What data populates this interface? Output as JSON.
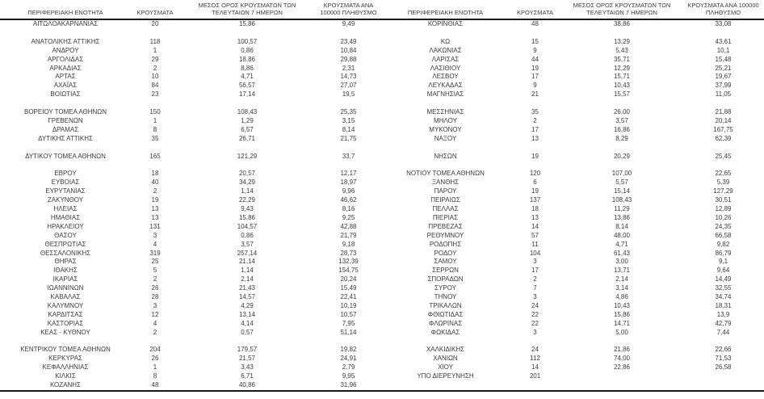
{
  "table": {
    "headers": [
      "ΠΕΡΙΦΕΡΕΙΑΚΗ ΕΝΟΤΗΤΑ",
      "ΚΡΟΥΣΜΑΤΑ",
      "ΜΕΣΟΣ ΟΡΟΣ ΚΡΟΥΣΜΑΤΩΝ ΤΩΝ ΤΕΛΕΥΤΑΙΩΝ 7 ΗΜΕΡΩΝ",
      "ΚΡΟΥΣΜΑΤΑ ΑΝΑ 100000 ΠΛΗΘΥΣΜΟ"
    ],
    "left_rows": [
      {
        "name": "ΑΙΤΩΛΟΑΚΑΡΝΑΝΙΑΣ",
        "cases": "20",
        "avg7": "15,86",
        "per100k": "9,49"
      },
      null,
      {
        "name": "ΑΝΑΤΟΛΙΚΗΣ ΑΤΤΙΚΗΣ",
        "cases": "118",
        "avg7": "100,57",
        "per100k": "23,49"
      },
      {
        "name": "ΑΝΔΡΟΥ",
        "cases": "1",
        "avg7": "0,86",
        "per100k": "10,84"
      },
      {
        "name": "ΑΡΓΟΛΙΔΑΣ",
        "cases": "29",
        "avg7": "18,86",
        "per100k": "29,88"
      },
      {
        "name": "ΑΡΚΑΔΙΑΣ",
        "cases": "2",
        "avg7": "8,86",
        "per100k": "2,31"
      },
      {
        "name": "ΑΡΤΑΣ",
        "cases": "10",
        "avg7": "4,71",
        "per100k": "14,73"
      },
      {
        "name": "ΑΧΑΪΑΣ",
        "cases": "84",
        "avg7": "56,57",
        "per100k": "27,07"
      },
      {
        "name": "ΒΟΙΩΤΙΑΣ",
        "cases": "23",
        "avg7": "17,14",
        "per100k": "19,5"
      },
      null,
      {
        "name": "ΒΟΡΕΙΟΥ ΤΟΜΕΑ ΑΘΗΝΩΝ",
        "cases": "150",
        "avg7": "108,43",
        "per100k": "25,35"
      },
      {
        "name": "ΓΡΕΒΕΝΩΝ",
        "cases": "1",
        "avg7": "1,29",
        "per100k": "3,15"
      },
      {
        "name": "ΔΡΑΜΑΣ",
        "cases": "8",
        "avg7": "6,57",
        "per100k": "8,14"
      },
      {
        "name": "ΔΥΤΙΚΗΣ ΑΤΤΙΚΗΣ",
        "cases": "35",
        "avg7": "26,71",
        "per100k": "21,75"
      },
      null,
      {
        "name": "ΔΥΤΙΚΟΥ ΤΟΜΕΑ ΑΘΗΝΩΝ",
        "cases": "165",
        "avg7": "121,29",
        "per100k": "33,7"
      },
      null,
      {
        "name": "ΕΒΡΟΥ",
        "cases": "18",
        "avg7": "20,57",
        "per100k": "12,17"
      },
      {
        "name": "ΕΥΒΟΙΑΣ",
        "cases": "40",
        "avg7": "34,29",
        "per100k": "18,97"
      },
      {
        "name": "ΕΥΡΥΤΑΝΙΑΣ",
        "cases": "2",
        "avg7": "1,14",
        "per100k": "9,96"
      },
      {
        "name": "ΖΑΚΥΝΘΟΥ",
        "cases": "19",
        "avg7": "22,29",
        "per100k": "46,62"
      },
      {
        "name": "ΗΛΕΙΑΣ",
        "cases": "13",
        "avg7": "9,43",
        "per100k": "8,16"
      },
      {
        "name": "ΗΜΑΘΙΑΣ",
        "cases": "13",
        "avg7": "15,86",
        "per100k": "9,25"
      },
      {
        "name": "ΗΡΑΚΛΕΙΟΥ",
        "cases": "131",
        "avg7": "104,57",
        "per100k": "42,88"
      },
      {
        "name": "ΘΑΣΟΥ",
        "cases": "3",
        "avg7": "0,86",
        "per100k": "21,79"
      },
      {
        "name": "ΘΕΣΠΡΩΤΙΑΣ",
        "cases": "4",
        "avg7": "3,57",
        "per100k": "9,18"
      },
      {
        "name": "ΘΕΣΣΑΛΟΝΙΚΗΣ",
        "cases": "319",
        "avg7": "257,14",
        "per100k": "28,73"
      },
      {
        "name": "ΘΗΡΑΣ",
        "cases": "25",
        "avg7": "21,14",
        "per100k": "132,39"
      },
      {
        "name": "ΙΘΑΚΗΣ",
        "cases": "5",
        "avg7": "1,14",
        "per100k": "154,75"
      },
      {
        "name": "ΙΚΑΡΙΑΣ",
        "cases": "2",
        "avg7": "2,14",
        "per100k": "20,24"
      },
      {
        "name": "ΙΩΑΝΝΙΝΩΝ",
        "cases": "26",
        "avg7": "21,43",
        "per100k": "15,49"
      },
      {
        "name": "ΚΑΒΑΛΑΣ",
        "cases": "28",
        "avg7": "14,57",
        "per100k": "22,41"
      },
      {
        "name": "ΚΑΛΥΜΝΟΥ",
        "cases": "3",
        "avg7": "4,29",
        "per100k": "10,19"
      },
      {
        "name": "ΚΑΡΔΙΤΣΑΣ",
        "cases": "12",
        "avg7": "13,14",
        "per100k": "10,57"
      },
      {
        "name": "ΚΑΣΤΟΡΙΑΣ",
        "cases": "4",
        "avg7": "4,14",
        "per100k": "7,95"
      },
      {
        "name": "ΚΕΑΣ - ΚΥΘΝΟΥ",
        "cases": "2",
        "avg7": "0,57",
        "per100k": "51,14"
      },
      null,
      {
        "name": "ΚΕΝΤΡΙΚΟΥ ΤΟΜΕΑ ΑΘΗΝΩΝ",
        "cases": "204",
        "avg7": "179,57",
        "per100k": "19,82"
      },
      {
        "name": "ΚΕΡΚΥΡΑΣ",
        "cases": "26",
        "avg7": "21,57",
        "per100k": "24,91"
      },
      {
        "name": "ΚΕΦΑΛΛΗΝΙΑΣ",
        "cases": "1",
        "avg7": "3,43",
        "per100k": "2,79"
      },
      {
        "name": "ΚΙΛΚΙΣ",
        "cases": "8",
        "avg7": "6,71",
        "per100k": "9,95"
      },
      {
        "name": "ΚΟΖΑΝΗΣ",
        "cases": "48",
        "avg7": "40,86",
        "per100k": "31,96"
      }
    ],
    "right_rows": [
      {
        "name": "ΚΟΡΙΝΘΙΑΣ",
        "cases": "48",
        "avg7": "38,86",
        "per100k": "33,08"
      },
      null,
      {
        "name": "ΚΩ",
        "cases": "15",
        "avg7": "13,29",
        "per100k": "43,61"
      },
      {
        "name": "ΛΑΚΩΝΙΑΣ",
        "cases": "9",
        "avg7": "5,43",
        "per100k": "10,1"
      },
      {
        "name": "ΛΑΡΙΣΑΣ",
        "cases": "44",
        "avg7": "35,71",
        "per100k": "15,48"
      },
      {
        "name": "ΛΑΣΙΘΙΟΥ",
        "cases": "19",
        "avg7": "12,29",
        "per100k": "25,21"
      },
      {
        "name": "ΛΕΣΒΟΥ",
        "cases": "17",
        "avg7": "15,71",
        "per100k": "19,67"
      },
      {
        "name": "ΛΕΥΚΑΔΑΣ",
        "cases": "9",
        "avg7": "10,43",
        "per100k": "37,99"
      },
      {
        "name": "ΜΑΓΝΗΣΙΑΣ",
        "cases": "21",
        "avg7": "15,57",
        "per100k": "11,05"
      },
      null,
      {
        "name": "ΜΕΣΣΗΝΙΑΣ",
        "cases": "35",
        "avg7": "26,00",
        "per100k": "21,88"
      },
      {
        "name": "ΜΗΛΟΥ",
        "cases": "2",
        "avg7": "3,57",
        "per100k": "20,14"
      },
      {
        "name": "ΜΥΚΟΝΟΥ",
        "cases": "17",
        "avg7": "16,86",
        "per100k": "167,75"
      },
      {
        "name": "ΝΑΞΟΥ",
        "cases": "13",
        "avg7": "8,29",
        "per100k": "62,39"
      },
      null,
      {
        "name": "ΝΗΣΩΝ",
        "cases": "19",
        "avg7": "20,29",
        "per100k": "25,45"
      },
      null,
      {
        "name": "ΝΟΤΙΟΥ ΤΟΜΕΑ ΑΘΗΝΩΝ",
        "cases": "120",
        "avg7": "107,00",
        "per100k": "22,65"
      },
      {
        "name": "ΞΑΝΘΗΣ",
        "cases": "6",
        "avg7": "5,57",
        "per100k": "5,39"
      },
      {
        "name": "ΠΑΡΟΥ",
        "cases": "19",
        "avg7": "15,14",
        "per100k": "127,29"
      },
      {
        "name": "ΠΕΙΡΑΙΩΣ",
        "cases": "137",
        "avg7": "108,43",
        "per100k": "30,51"
      },
      {
        "name": "ΠΕΛΛΑΣ",
        "cases": "18",
        "avg7": "11,29",
        "per100k": "12,89"
      },
      {
        "name": "ΠΙΕΡΙΑΣ",
        "cases": "13",
        "avg7": "13,86",
        "per100k": "10,26"
      },
      {
        "name": "ΠΡΕΒΕΖΑΣ",
        "cases": "14",
        "avg7": "8,14",
        "per100k": "24,35"
      },
      {
        "name": "ΡΕΘΥΜΝΟΥ",
        "cases": "57",
        "avg7": "48,00",
        "per100k": "66,58"
      },
      {
        "name": "ΡΟΔΟΠΗΣ",
        "cases": "11",
        "avg7": "4,71",
        "per100k": "9,82"
      },
      {
        "name": "ΡΟΔΟΥ",
        "cases": "104",
        "avg7": "61,43",
        "per100k": "86,79"
      },
      {
        "name": "ΣΑΜΟΥ",
        "cases": "3",
        "avg7": "3,00",
        "per100k": "9,1"
      },
      {
        "name": "ΣΕΡΡΩΝ",
        "cases": "17",
        "avg7": "13,71",
        "per100k": "9,64"
      },
      {
        "name": "ΣΠΟΡΑΔΩΝ",
        "cases": "2",
        "avg7": "2,14",
        "per100k": "14,49"
      },
      {
        "name": "ΣΥΡΟΥ",
        "cases": "7",
        "avg7": "3,14",
        "per100k": "32,55"
      },
      {
        "name": "ΤΗΝΟΥ",
        "cases": "3",
        "avg7": "4,86",
        "per100k": "34,74"
      },
      {
        "name": "ΤΡΙΚΑΛΩΝ",
        "cases": "24",
        "avg7": "10,43",
        "per100k": "18,31"
      },
      {
        "name": "ΦΘΙΩΤΙΔΑΣ",
        "cases": "22",
        "avg7": "15,86",
        "per100k": "13,9"
      },
      {
        "name": "ΦΛΩΡΙΝΑΣ",
        "cases": "22",
        "avg7": "14,71",
        "per100k": "42,79"
      },
      {
        "name": "ΦΩΚΙΔΑΣ",
        "cases": "3",
        "avg7": "5,00",
        "per100k": "7,44"
      },
      null,
      {
        "name": "ΧΑΛΚΙΔΙΚΗΣ",
        "cases": "24",
        "avg7": "21,86",
        "per100k": "22,66"
      },
      {
        "name": "ΧΑΝΙΩΝ",
        "cases": "112",
        "avg7": "74,00",
        "per100k": "71,53"
      },
      {
        "name": "ΧΙΟΥ",
        "cases": "14",
        "avg7": "22,86",
        "per100k": "26,58"
      },
      {
        "name": "ΥΠΟ ΔΙΕΡΕΥΝΗΣΗ",
        "cases": "201",
        "avg7": "",
        "per100k": ""
      },
      null
    ]
  },
  "colors": {
    "text": "#3b3b3b",
    "border": "#1a1a1a",
    "background": "#ffffff"
  }
}
